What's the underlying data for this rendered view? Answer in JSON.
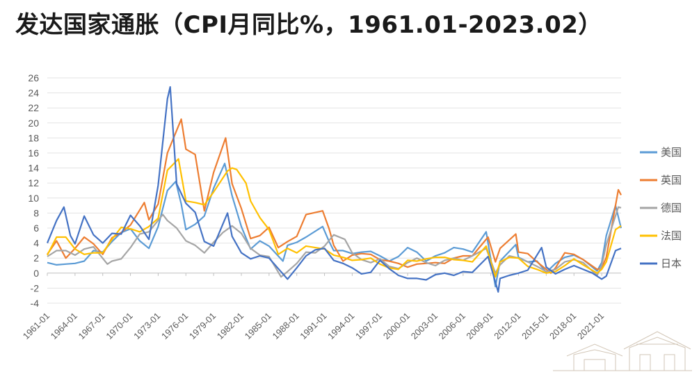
{
  "title": "发达国家通胀（CPI月同比%，1961.01-2023.02）",
  "chart_data": {
    "type": "line",
    "title": "发达国家通胀（CPI月同比%，1961.01-2023.02）",
    "xlabel": "",
    "ylabel": "",
    "ylim": [
      -4,
      26
    ],
    "yticks": [
      -4,
      -2,
      0,
      2,
      4,
      6,
      8,
      10,
      12,
      14,
      16,
      18,
      20,
      22,
      24,
      26
    ],
    "xlim": [
      1961.0,
      2023.1
    ],
    "xticks": [
      "1961-01",
      "1964-01",
      "1967-01",
      "1970-01",
      "1973-01",
      "1976-01",
      "1979-01",
      "1982-01",
      "1985-01",
      "1988-01",
      "1991-01",
      "1994-01",
      "1997-01",
      "2000-01",
      "2003-01",
      "2006-01",
      "2009-01",
      "2012-01",
      "2015-01",
      "2018-01",
      "2021-01"
    ],
    "grid": "horizontal",
    "legend_position": "right",
    "series": [
      {
        "name": "美国",
        "color": "#5b9bd5",
        "x": [
          1961,
          1962,
          1963,
          1964,
          1965,
          1966,
          1967,
          1968,
          1969,
          1970,
          1971,
          1972,
          1973,
          1974,
          1974.9,
          1975.5,
          1976,
          1977,
          1978,
          1979,
          1980.2,
          1981,
          1982,
          1983,
          1984,
          1985,
          1986.5,
          1987,
          1988,
          1989,
          1990.8,
          1991.5,
          1992,
          1993,
          1994,
          1995,
          1996,
          1997,
          1998,
          1999,
          2000,
          2001,
          2002,
          2003,
          2004,
          2005,
          2006,
          2007,
          2008.5,
          2009.5,
          2010,
          2011.7,
          2012,
          2013,
          2014,
          2015,
          2016,
          2017,
          2018,
          2019,
          2020.5,
          2021,
          2021.5,
          2022.5,
          2023.1
        ],
        "y": [
          1.4,
          1.1,
          1.2,
          1.3,
          1.6,
          3.0,
          2.8,
          4.2,
          5.4,
          5.9,
          4.3,
          3.3,
          6.2,
          11.0,
          12.2,
          9.2,
          5.8,
          6.5,
          7.6,
          11.3,
          14.6,
          10.3,
          6.2,
          3.2,
          4.3,
          3.6,
          1.6,
          3.7,
          4.1,
          4.8,
          6.2,
          4.2,
          3.0,
          3.0,
          2.6,
          2.8,
          2.9,
          2.3,
          1.6,
          2.2,
          3.4,
          2.8,
          1.6,
          2.3,
          2.7,
          3.4,
          3.2,
          2.8,
          5.5,
          -1.8,
          1.6,
          3.8,
          2.1,
          1.5,
          1.6,
          0.1,
          1.3,
          2.1,
          2.4,
          1.8,
          0.3,
          1.4,
          5.0,
          9.0,
          6.0
        ]
      },
      {
        "name": "英国",
        "color": "#ed7d31",
        "x": [
          1961,
          1962,
          1963,
          1964,
          1965,
          1966,
          1967,
          1968,
          1969,
          1970,
          1971.5,
          1972,
          1973,
          1974,
          1975.5,
          1976,
          1977,
          1978,
          1979,
          1980.3,
          1981,
          1982,
          1983,
          1984,
          1985,
          1986,
          1987,
          1988,
          1989,
          1990.8,
          1991.5,
          1992,
          1993,
          1994,
          1995,
          1996,
          1997,
          1998,
          1999,
          2000,
          2001,
          2002,
          2003,
          2004,
          2005,
          2006,
          2007,
          2008.7,
          2009.5,
          2010,
          2011.7,
          2012,
          2013,
          2014,
          2015.5,
          2016,
          2017,
          2018,
          2019,
          2020.5,
          2021,
          2021.5,
          2022.8,
          2023.1
        ],
        "y": [
          2.5,
          4.3,
          2.0,
          3.3,
          4.8,
          3.9,
          2.5,
          4.7,
          5.4,
          6.4,
          9.4,
          7.1,
          9.2,
          16.0,
          20.5,
          16.5,
          15.8,
          8.3,
          13.4,
          18.0,
          11.9,
          8.6,
          4.6,
          5.0,
          6.1,
          3.4,
          4.2,
          4.9,
          7.8,
          8.3,
          5.9,
          3.7,
          1.6,
          2.4,
          2.6,
          2.5,
          1.8,
          1.6,
          1.3,
          0.8,
          1.2,
          1.3,
          1.4,
          1.3,
          2.0,
          2.3,
          2.3,
          4.8,
          1.5,
          3.3,
          5.2,
          2.8,
          2.6,
          1.5,
          0.0,
          0.7,
          2.7,
          2.5,
          1.8,
          0.5,
          0.7,
          2.1,
          11.1,
          10.4
        ]
      },
      {
        "name": "德国",
        "color": "#a5a5a5",
        "x": [
          1961,
          1962,
          1963,
          1964,
          1965,
          1966,
          1967.5,
          1968,
          1969,
          1970,
          1971,
          1972,
          1973.5,
          1974,
          1975,
          1976,
          1977,
          1978,
          1979,
          1980,
          1981,
          1982,
          1983,
          1984,
          1985,
          1986.3,
          1987,
          1988,
          1989,
          1990,
          1991,
          1992,
          1993.2,
          1994,
          1995,
          1996,
          1997,
          1998,
          1999,
          2000,
          2001,
          2002,
          2003,
          2004,
          2005,
          2006,
          2007,
          2008.5,
          2009.5,
          2010,
          2011,
          2012,
          2013,
          2014,
          2015,
          2016,
          2017,
          2018,
          2019,
          2020.5,
          2021,
          2021.5,
          2022.8,
          2023.1
        ],
        "y": [
          2.2,
          3.0,
          3.0,
          2.4,
          3.2,
          3.5,
          1.2,
          1.6,
          1.9,
          3.4,
          5.2,
          5.5,
          7.8,
          7.0,
          6.0,
          4.3,
          3.7,
          2.7,
          4.1,
          5.4,
          6.3,
          5.3,
          3.3,
          2.4,
          2.2,
          -0.5,
          0.2,
          1.3,
          2.8,
          2.7,
          3.6,
          5.1,
          4.5,
          2.7,
          1.8,
          1.4,
          1.9,
          0.9,
          0.6,
          1.4,
          2.0,
          1.4,
          1.0,
          1.7,
          2.0,
          1.7,
          2.3,
          3.3,
          0.0,
          1.1,
          2.3,
          2.0,
          1.5,
          0.9,
          0.2,
          0.5,
          1.5,
          1.8,
          1.4,
          -0.3,
          1.0,
          3.8,
          8.8,
          8.7
        ]
      },
      {
        "name": "法国",
        "color": "#ffc000",
        "x": [
          1961,
          1962,
          1963,
          1964,
          1965,
          1966,
          1967,
          1968,
          1969,
          1970,
          1971,
          1972,
          1973,
          1974,
          1975.2,
          1976,
          1977,
          1978,
          1979,
          1980.5,
          1981,
          1981.5,
          1982.5,
          1983,
          1984,
          1985,
          1986,
          1987,
          1988,
          1989,
          1990,
          1991,
          1992,
          1993,
          1994,
          1995,
          1996,
          1997,
          1998,
          1999,
          2000,
          2001,
          2002,
          2003,
          2004,
          2005,
          2006,
          2007,
          2008.5,
          2009.5,
          2010,
          2011,
          2012,
          2013,
          2014,
          2015,
          2016,
          2017,
          2018,
          2019,
          2020.5,
          2021,
          2021.5,
          2022.5,
          2023.1
        ],
        "y": [
          2.4,
          4.8,
          4.8,
          3.2,
          2.5,
          2.7,
          2.7,
          4.5,
          6.1,
          5.9,
          5.5,
          6.2,
          7.3,
          13.7,
          15.2,
          9.6,
          9.4,
          9.1,
          10.8,
          13.6,
          14.0,
          13.8,
          12.0,
          9.6,
          7.4,
          5.8,
          2.5,
          3.3,
          2.7,
          3.6,
          3.4,
          3.2,
          2.4,
          2.1,
          1.7,
          1.8,
          2.0,
          1.2,
          0.7,
          0.5,
          1.7,
          1.6,
          1.9,
          2.1,
          2.1,
          1.8,
          1.7,
          1.5,
          3.6,
          -0.5,
          1.5,
          2.1,
          2.0,
          0.9,
          0.5,
          0.0,
          0.2,
          1.0,
          1.9,
          1.1,
          0.0,
          0.5,
          1.5,
          5.8,
          6.3
        ]
      },
      {
        "name": "日本",
        "color": "#4472c4",
        "x": [
          1961,
          1962,
          1962.8,
          1963.5,
          1964,
          1965,
          1966,
          1967,
          1968,
          1969,
          1970,
          1971,
          1972,
          1973,
          1974,
          1974.3,
          1975,
          1976,
          1977,
          1978,
          1979,
          1980.5,
          1981,
          1982,
          1983,
          1984,
          1985,
          1986,
          1987,
          1988,
          1989,
          1990,
          1991,
          1992,
          1993,
          1994,
          1995,
          1996,
          1997,
          1998,
          1999,
          2000,
          2001,
          2002,
          2003,
          2004,
          2005,
          2006,
          2007,
          2008.7,
          2009.8,
          2010,
          2011,
          2012,
          2013,
          2014.5,
          2015,
          2016,
          2017,
          2018,
          2019,
          2020,
          2021,
          2021.5,
          2022.5,
          2023.1
        ],
        "y": [
          4.0,
          7.0,
          8.8,
          5.0,
          3.9,
          7.6,
          5.1,
          4.0,
          5.3,
          5.2,
          7.7,
          6.3,
          4.5,
          11.7,
          23.2,
          24.8,
          11.9,
          9.3,
          8.1,
          4.2,
          3.6,
          8.0,
          4.9,
          2.7,
          1.9,
          2.3,
          2.0,
          0.6,
          -0.8,
          0.7,
          2.3,
          3.1,
          3.3,
          1.7,
          1.3,
          0.7,
          -0.1,
          0.1,
          1.7,
          0.6,
          -0.3,
          -0.7,
          -0.7,
          -0.9,
          -0.2,
          0.0,
          -0.3,
          0.2,
          0.1,
          2.2,
          -2.5,
          -0.7,
          -0.3,
          0.0,
          0.4,
          3.4,
          0.8,
          -0.1,
          0.5,
          1.0,
          0.5,
          0.0,
          -0.8,
          -0.4,
          3.0,
          3.3
        ]
      }
    ]
  }
}
